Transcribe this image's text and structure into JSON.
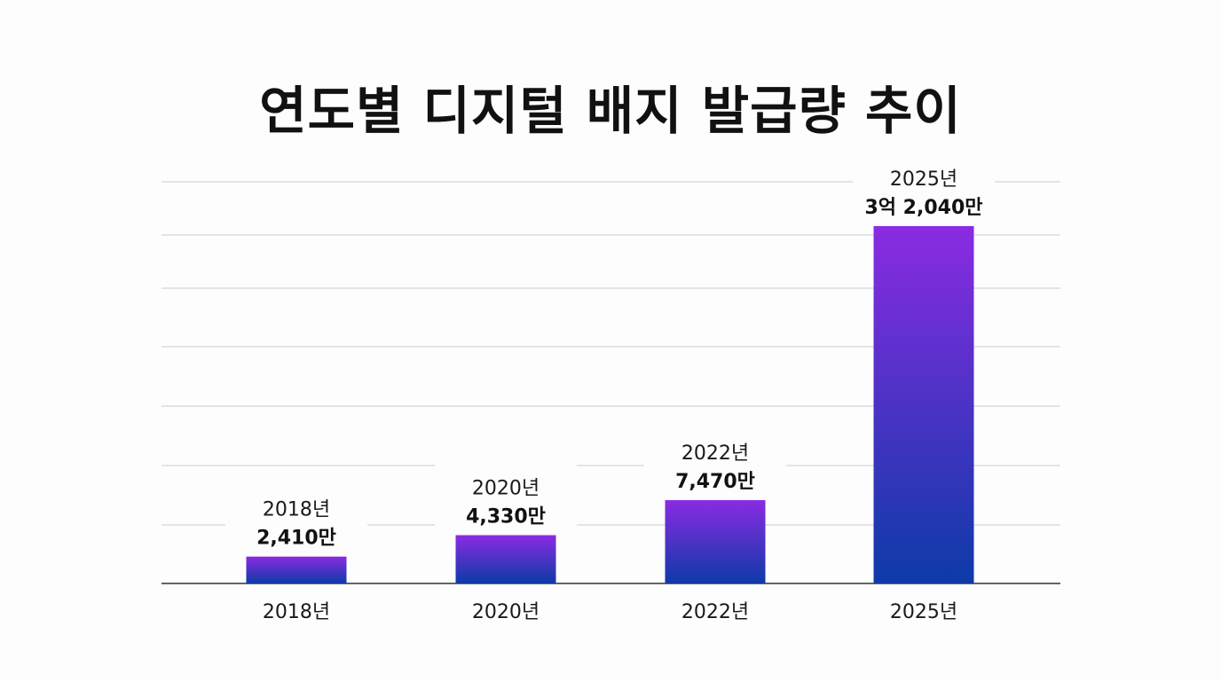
{
  "chart_data": {
    "type": "bar",
    "title": "연도별 디지털 배지 발급량 추이",
    "xlabel": "",
    "ylabel": "",
    "categories": [
      "2018년",
      "2020년",
      "2022년",
      "2025년"
    ],
    "values": [
      2410,
      4330,
      7470,
      32040
    ],
    "value_labels": [
      "2,410만",
      "4,330만",
      "7,470만",
      "3억 2,040만"
    ],
    "unit": "만",
    "grid": true,
    "gridlines": 7,
    "legend": "none",
    "colors": {
      "bar_top": "#8a2be2",
      "bar_bottom": "#0d3aa8",
      "grid": "#cccccc",
      "axis": "#333333"
    }
  }
}
